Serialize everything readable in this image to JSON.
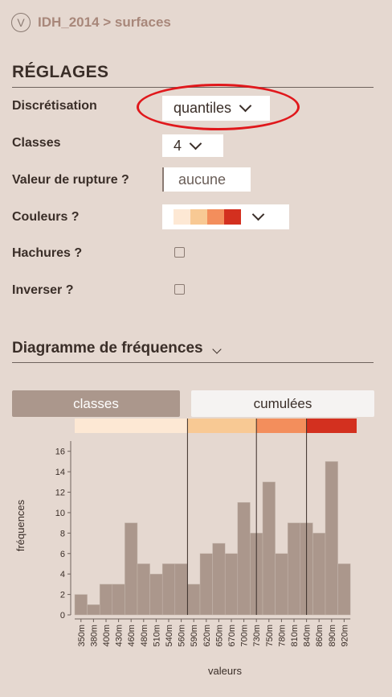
{
  "header": {
    "v_glyph": "V",
    "breadcrumb": "IDH_2014 > surfaces"
  },
  "settings": {
    "title": "RÉGLAGES",
    "discretisation": {
      "label": "Discrétisation",
      "value": "quantiles"
    },
    "classes": {
      "label": "Classes",
      "value": "4"
    },
    "rupture": {
      "label": "Valeur de rupture ?",
      "placeholder": "aucune"
    },
    "couleurs": {
      "label": "Couleurs ?",
      "palette": [
        "#fde8d4",
        "#f8c994",
        "#f38e5c",
        "#d3301f"
      ]
    },
    "hachures": {
      "label": "Hachures ?",
      "checked": false
    },
    "inverser": {
      "label": "Inverser ?",
      "checked": false
    }
  },
  "frequency": {
    "title": "Diagramme de fréquences",
    "tabs": {
      "active": "classes",
      "inactive": "cumulées"
    }
  },
  "chart_data": {
    "type": "bar",
    "xlabel": "valeurs",
    "ylabel": "fréquences",
    "ylim": [
      0,
      17
    ],
    "yticks": [
      0,
      2,
      4,
      6,
      8,
      10,
      12,
      14,
      16
    ],
    "categories": [
      "350m",
      "380m",
      "400m",
      "430m",
      "460m",
      "480m",
      "510m",
      "540m",
      "560m",
      "590m",
      "620m",
      "650m",
      "670m",
      "700m",
      "730m",
      "750m",
      "780m",
      "810m",
      "840m",
      "860m",
      "890m",
      "920m"
    ],
    "values": [
      2,
      1,
      3,
      3,
      9,
      5,
      4,
      5,
      5,
      3,
      6,
      7,
      6,
      11,
      8,
      13,
      6,
      9,
      9,
      8,
      15,
      5
    ],
    "class_bands": [
      {
        "from": 0,
        "to": 9,
        "color": "#fde8d4"
      },
      {
        "from": 9,
        "to": 14.5,
        "color": "#f8c994"
      },
      {
        "from": 14.5,
        "to": 18.5,
        "color": "#f38e5c"
      },
      {
        "from": 18.5,
        "to": 22.5,
        "color": "#d3301f"
      }
    ],
    "bar_color": "#ab978c"
  }
}
